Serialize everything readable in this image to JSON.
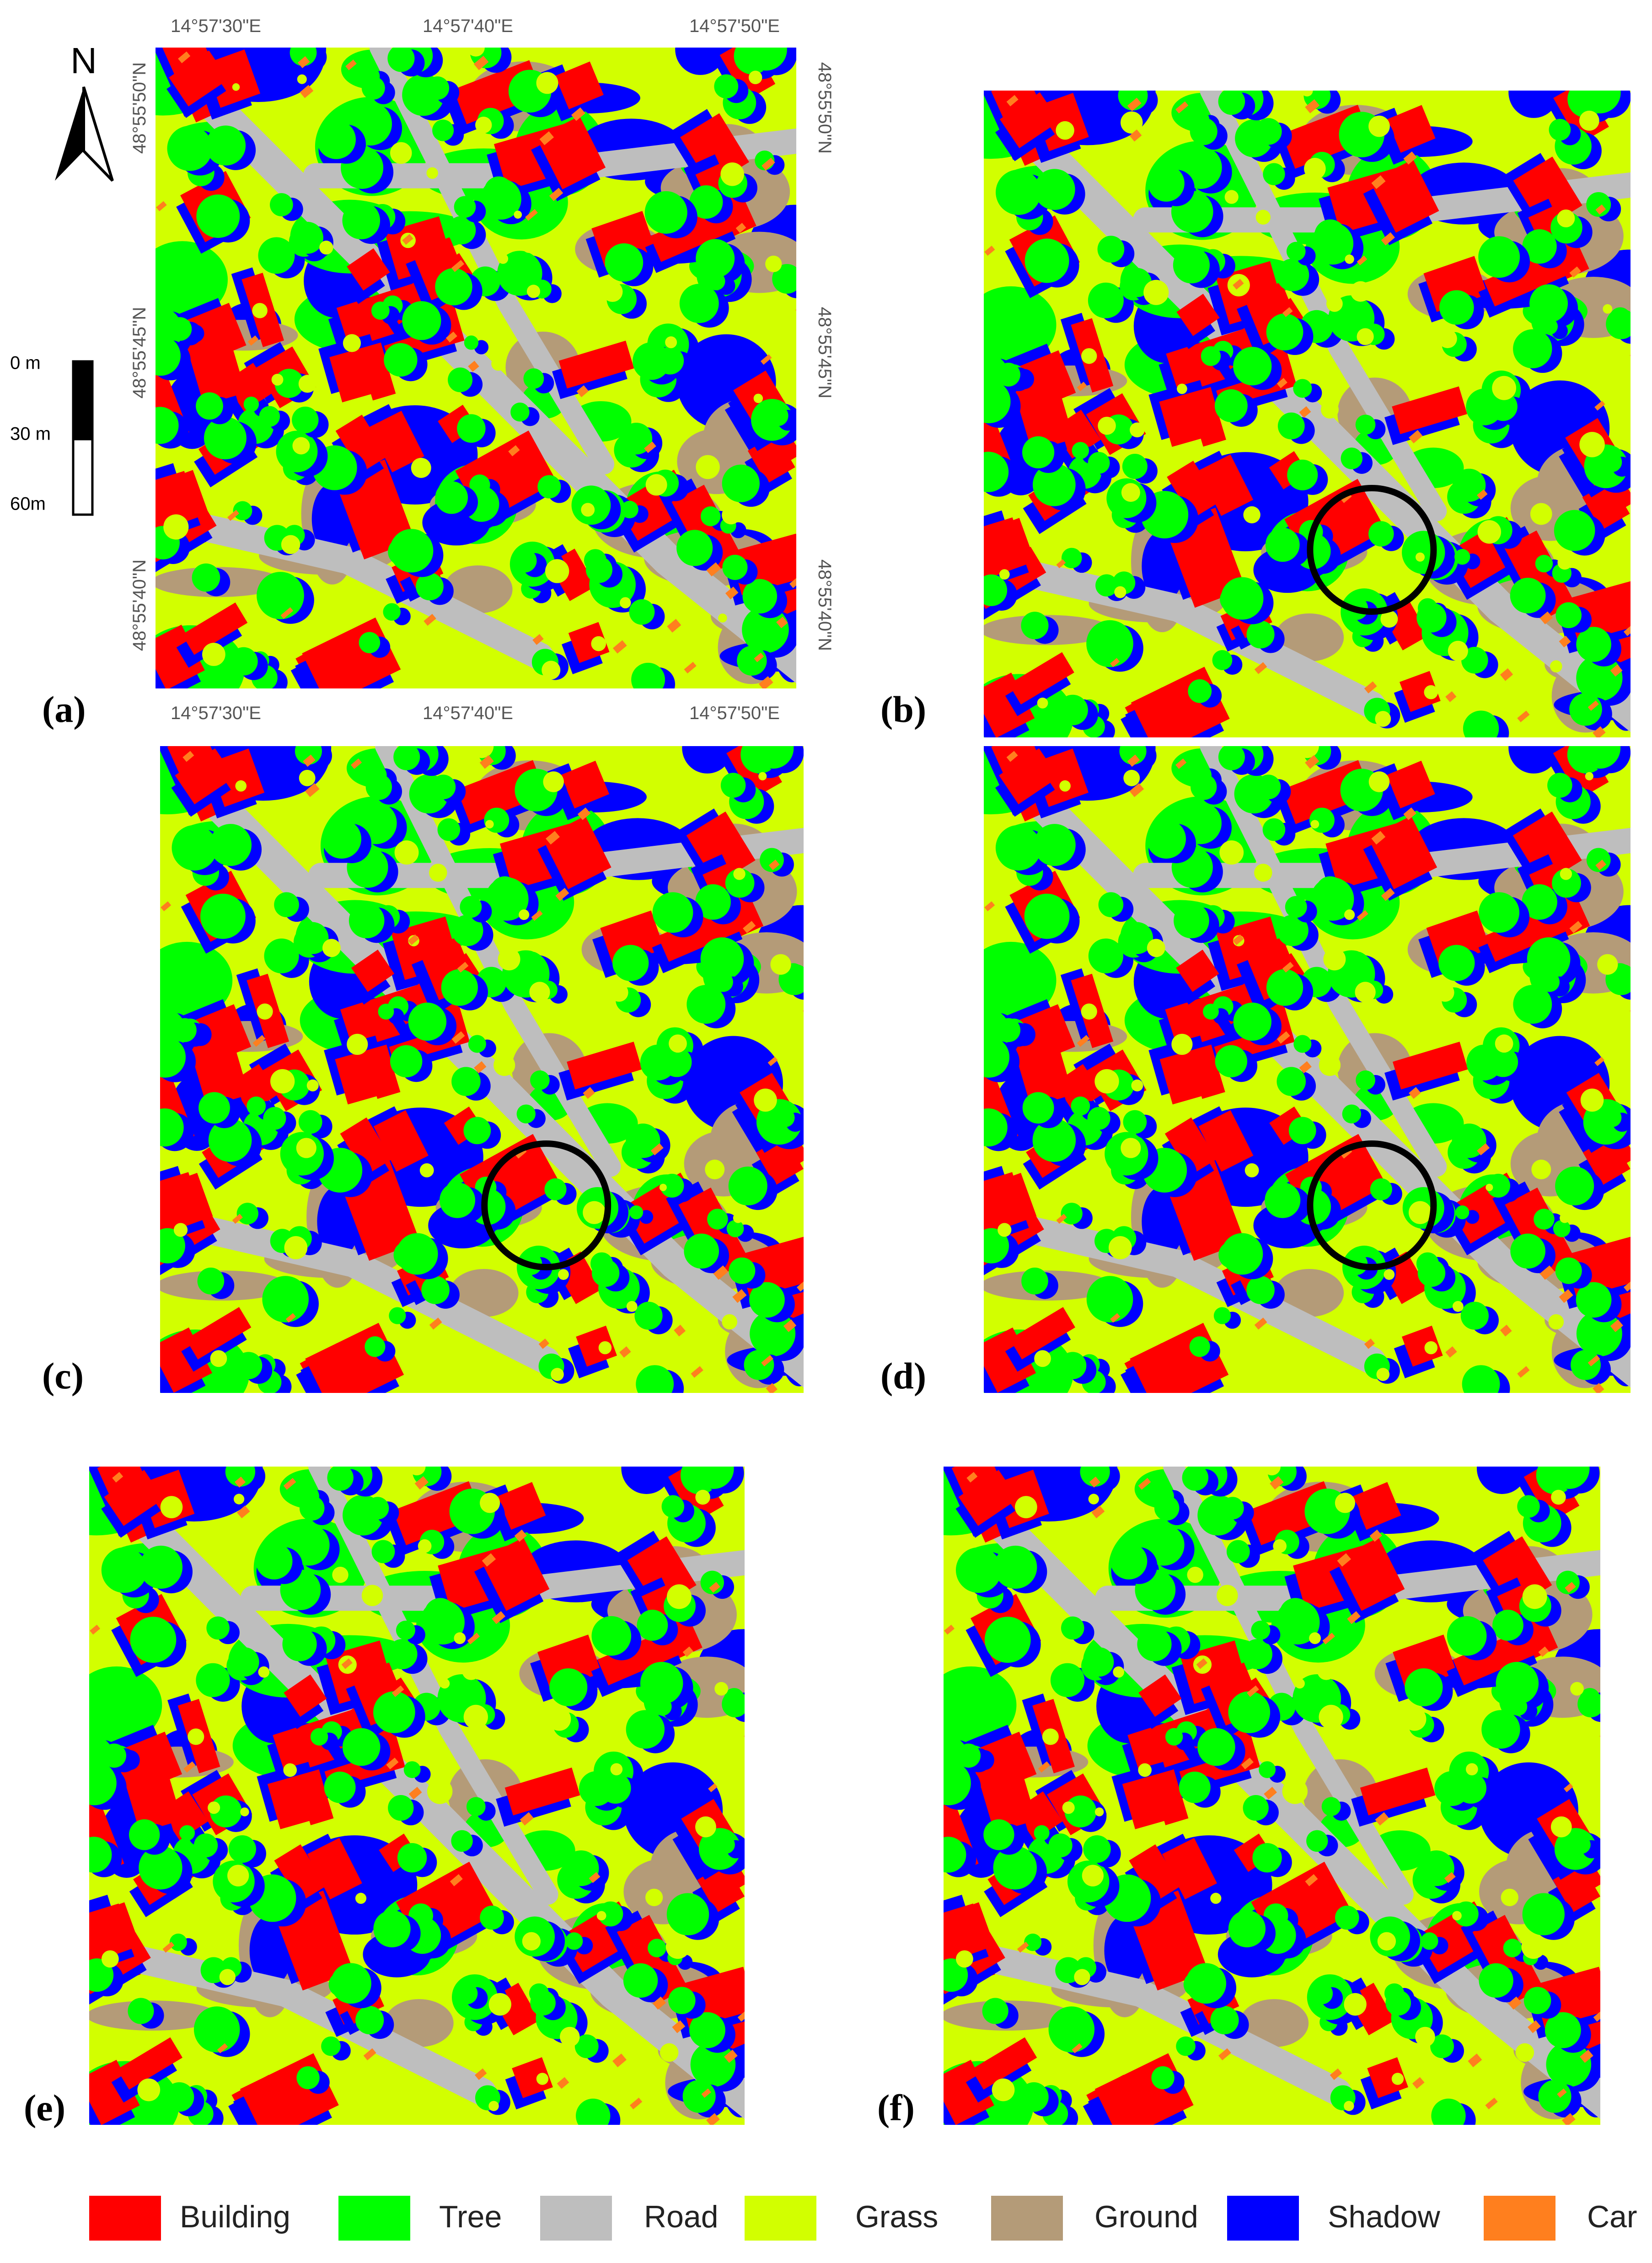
{
  "north_arrow": "N",
  "scale_bar": {
    "labels": [
      "0 m",
      "30 m",
      "60m"
    ]
  },
  "coordinates": {
    "top": [
      "14°57'30\"E",
      "14°57'40\"E",
      "14°57'50\"E"
    ],
    "bottom": [
      "14°57'30\"E",
      "14°57'40\"E",
      "14°57'50\"E"
    ],
    "left": [
      "48°55'50\"N",
      "48°55'45\"N",
      "48°55'40\"N"
    ],
    "right": [
      "48°55'50\"N",
      "48°55'45\"N",
      "48°55'40\"N"
    ]
  },
  "panels": [
    {
      "label": "(a)"
    },
    {
      "label": "(b)"
    },
    {
      "label": "(c)"
    },
    {
      "label": "(d)"
    },
    {
      "label": "(e)"
    },
    {
      "label": "(f)"
    }
  ],
  "legend": [
    {
      "name": "Building",
      "color": "#ff0000"
    },
    {
      "name": "Tree",
      "color": "#00ff00"
    },
    {
      "name": "Road",
      "color": "#bebebe"
    },
    {
      "name": "Grass",
      "color": "#d2ff00"
    },
    {
      "name": "Ground",
      "color": "#b49b78"
    },
    {
      "name": "Shadow",
      "color": "#0000ff"
    },
    {
      "name": "Car",
      "color": "#ff7f1e"
    }
  ]
}
